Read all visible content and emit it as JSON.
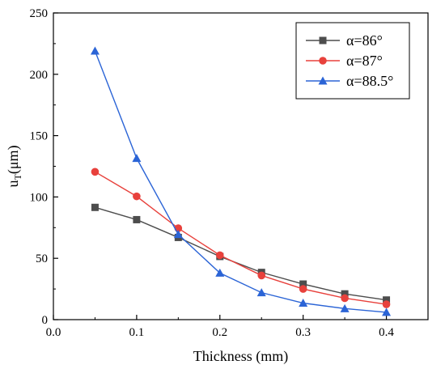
{
  "chart_data": {
    "type": "line",
    "title": "",
    "xlabel": "Thickness (mm)",
    "ylabel_main": "u",
    "ylabel_sub": "T",
    "ylabel_unit": "(μm)",
    "xlim": [
      0.0,
      0.45
    ],
    "ylim": [
      0,
      250
    ],
    "xticks": [
      "0.0",
      "0.1",
      "0.2",
      "0.3",
      "0.4"
    ],
    "yticks": [
      "0",
      "50",
      "100",
      "150",
      "200",
      "250"
    ],
    "x": [
      0.05,
      0.1,
      0.15,
      0.2,
      0.25,
      0.3,
      0.35,
      0.4
    ],
    "grid": false,
    "legend_position": "top-right",
    "series": [
      {
        "name": "α=86°",
        "color": "#4d4d4d",
        "marker": "square",
        "values": [
          91.5,
          81.5,
          67,
          51.5,
          38.5,
          29,
          21,
          16
        ]
      },
      {
        "name": "α=87°",
        "color": "#e8413c",
        "marker": "circle",
        "values": [
          120.5,
          100.5,
          74.5,
          52.5,
          36,
          25,
          17.5,
          12.5
        ]
      },
      {
        "name": "α=88.5°",
        "color": "#2b64d6",
        "marker": "triangle",
        "values": [
          219,
          131.5,
          69.5,
          38,
          22,
          13.5,
          9,
          6
        ]
      }
    ]
  }
}
